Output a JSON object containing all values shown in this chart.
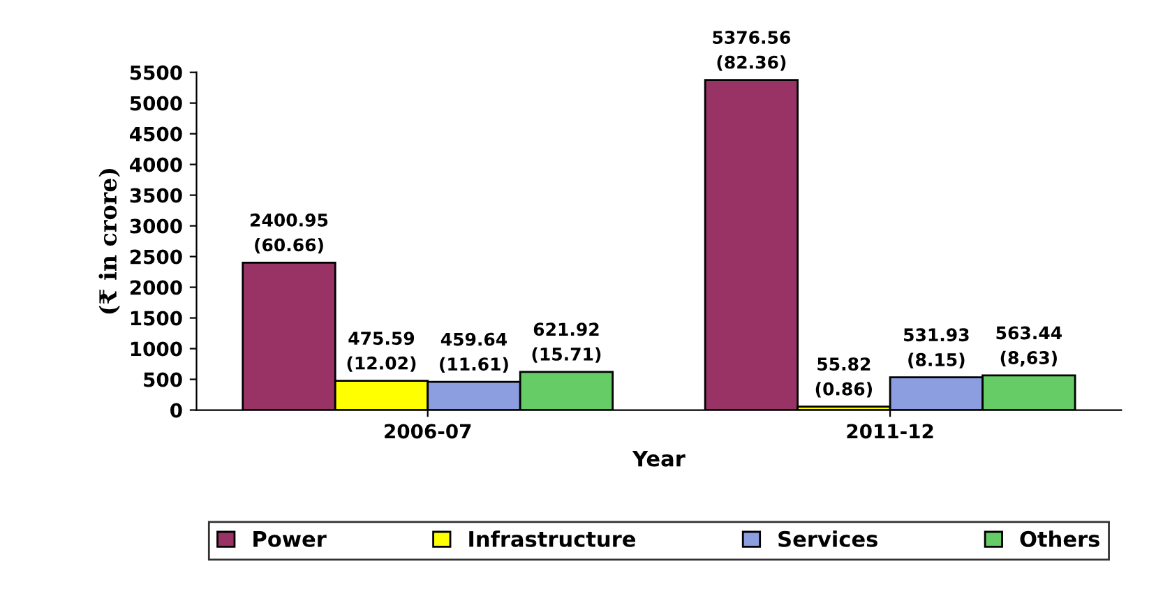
{
  "chart_data": {
    "type": "bar",
    "xlabel": "Year",
    "ylabel": "(₹ in crore)",
    "categories": [
      "2006-07",
      "2011-12"
    ],
    "series": [
      {
        "name": "Power",
        "color": "#993366",
        "values": [
          2400.95,
          5376.56
        ],
        "value_labels": [
          "2400.95\n(60.66)",
          "5376.56\n(82.36)"
        ]
      },
      {
        "name": "Infrastructure",
        "color": "#ffff00",
        "values": [
          475.59,
          55.82
        ],
        "value_labels": [
          "475.59\n(12.02)",
          "55.82\n(0.86)"
        ]
      },
      {
        "name": "Services",
        "color": "#8c9ee0",
        "values": [
          459.64,
          531.93
        ],
        "value_labels": [
          "459.64\n(11.61)",
          "531.93\n(8.15)"
        ]
      },
      {
        "name": "Others",
        "color": "#66cc66",
        "values": [
          621.92,
          563.44
        ],
        "value_labels": [
          "621.92\n(15.71)",
          "563.44\n(8,63)"
        ]
      }
    ],
    "ylim": [
      0,
      5500
    ],
    "yticks": [
      0,
      500,
      1000,
      1500,
      2000,
      2500,
      3000,
      3500,
      4000,
      4500,
      5000,
      5500
    ],
    "grid": false,
    "legend": "bottom"
  }
}
